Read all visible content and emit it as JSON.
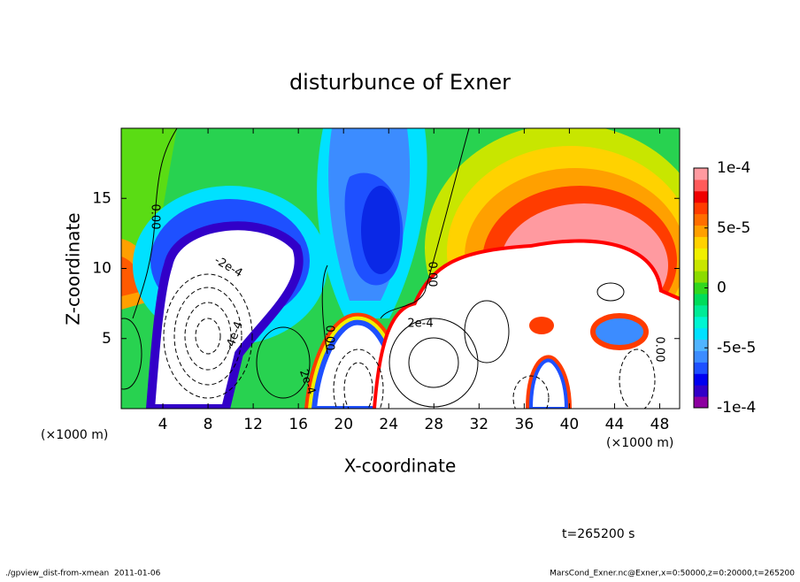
{
  "chart_data": {
    "type": "contour",
    "title": "disturbunce of Exner",
    "x_label": "X-coordinate",
    "y_label": "Z-coordinate",
    "x_unit": "(×1000 m)",
    "y_unit": "(×1000 m)",
    "xlim": [
      0,
      50
    ],
    "xticks": [
      4,
      8,
      12,
      16,
      20,
      24,
      28,
      32,
      36,
      40,
      44,
      48
    ],
    "ylim": [
      0,
      20
    ],
    "yticks": [
      5,
      10,
      15
    ],
    "colorbar": {
      "lim": [
        -0.0001,
        0.0001
      ],
      "ticks": [
        {
          "value": -0.0001,
          "label": "-1e-4"
        },
        {
          "value": -5e-05,
          "label": "-5e-5"
        },
        0,
        {
          "value": 5e-05,
          "label": "5e-5"
        },
        {
          "value": 0.0001,
          "label": "1e-4"
        }
      ],
      "colors": [
        "#8c00a0",
        "#3200c8",
        "#0000f0",
        "#1e50ff",
        "#3c8cff",
        "#50b4ff",
        "#00e1ff",
        "#00f5d2",
        "#00eb96",
        "#00dc5a",
        "#32d71e",
        "#8cdc00",
        "#c8e600",
        "#f0f000",
        "#ffd200",
        "#ffa000",
        "#ff6e00",
        "#ff3c00",
        "#f00000",
        "#ff5a5a",
        "#ff9aa0"
      ]
    },
    "contour_labels": [
      "0.00",
      "-2e-4",
      "-4e-4",
      "0.00",
      "2e-4",
      "0.00",
      "2e-4",
      "0.00"
    ],
    "time_label": "t=265200 s"
  },
  "footer": {
    "left": "./gpview_dist-from-xmean  2011-01-06",
    "right": "MarsCond_Exner.nc@Exner,x=0:50000,z=0:20000,t=265200"
  }
}
